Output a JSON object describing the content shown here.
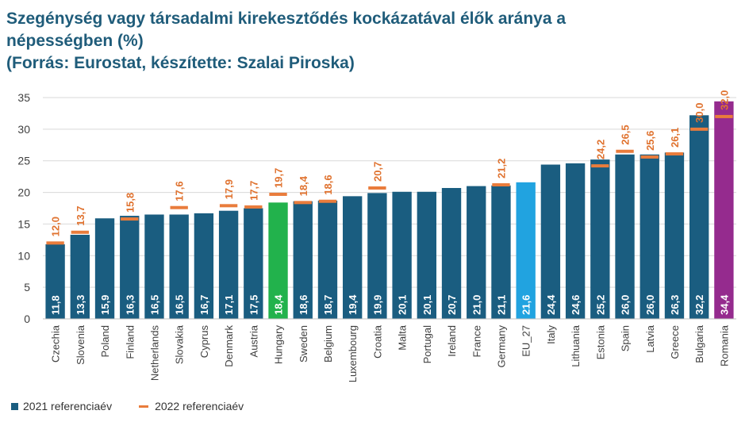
{
  "title": {
    "line1": "Szegénység vagy társadalmi kirekesztődés kockázatával élők aránya a",
    "line2": "népességben (%)",
    "line3": "(Forrás: Eurostat, készítette: Szalai Piroska)"
  },
  "colors": {
    "bar": "#1a5d80",
    "hungary": "#22b24c",
    "eu27": "#21a3e0",
    "romania": "#952b8e",
    "marker": "#e97c3c",
    "label_2021": "#ffffff",
    "label_2022": "#e07330",
    "grid": "#d9d9d9"
  },
  "chart_data": {
    "type": "bar",
    "ylim": [
      0,
      35
    ],
    "yticks": [
      0,
      5,
      10,
      15,
      20,
      25,
      30,
      35
    ],
    "grid": true,
    "legend_position": "bottom-left",
    "categories": [
      "Czechia",
      "Slovenia",
      "Poland",
      "Finland",
      "Netherlands",
      "Slovakia",
      "Cyprus",
      "Denmark",
      "Austria",
      "Hungary",
      "Sweden",
      "Belgium",
      "Luxembourg",
      "Croatia",
      "Malta",
      "Portugal",
      "Ireland",
      "France",
      "Germany",
      "EU_27",
      "Italy",
      "Lithuania",
      "Estonia",
      "Spain",
      "Latvia",
      "Greece",
      "Bulgaria",
      "Romania"
    ],
    "series": [
      {
        "name": "2021 referenciaév",
        "type": "bar",
        "values": [
          11.8,
          13.3,
          15.9,
          16.3,
          16.5,
          16.5,
          16.7,
          17.1,
          17.5,
          18.4,
          18.6,
          18.7,
          19.4,
          19.9,
          20.1,
          20.1,
          20.7,
          21.0,
          21.1,
          21.6,
          24.4,
          24.6,
          25.2,
          26.0,
          26.0,
          26.3,
          32.2,
          34.4
        ],
        "labels": [
          "11,8",
          "13,3",
          "15,9",
          "16,3",
          "16,5",
          "16,5",
          "16,7",
          "17,1",
          "17,5",
          "18,4",
          "18,6",
          "18,7",
          "19,4",
          "19,9",
          "20,1",
          "20,1",
          "20,7",
          "21,0",
          "21,1",
          "21,6",
          "24,4",
          "24,6",
          "25,2",
          "26,0",
          "26,0",
          "26,3",
          "32,2",
          "34,4"
        ]
      },
      {
        "name": "2022 referenciaév",
        "type": "marker",
        "values": [
          12.0,
          13.7,
          null,
          15.8,
          null,
          17.6,
          null,
          17.9,
          17.7,
          19.7,
          18.4,
          18.6,
          null,
          20.7,
          null,
          null,
          null,
          null,
          21.2,
          null,
          null,
          null,
          24.2,
          26.5,
          25.6,
          26.1,
          30.0,
          32.0
        ],
        "labels": [
          "12,0",
          "13,7",
          null,
          "15,8",
          null,
          "17,6",
          null,
          "17,9",
          "17,7",
          "19,7",
          "18,4",
          "18,6",
          null,
          "20,7",
          null,
          null,
          null,
          null,
          "21,2",
          null,
          null,
          null,
          "24,2",
          "26,5",
          "25,6",
          "26,1",
          "30,0",
          "32,0"
        ]
      }
    ]
  },
  "legend": {
    "item1": "2021 referenciaév",
    "item2": "2022 referenciaév"
  }
}
